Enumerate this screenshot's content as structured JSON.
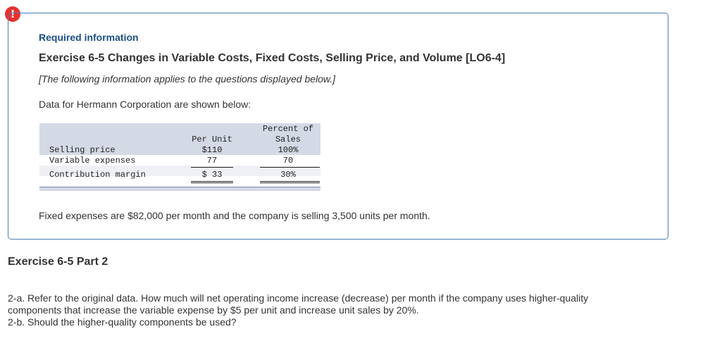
{
  "alert_glyph": "!",
  "info": {
    "required_label": "Required information",
    "exercise_title": "Exercise 6-5 Changes in Variable Costs, Fixed Costs, Selling Price, and Volume [LO6-4]",
    "note": "[The following information applies to the questions displayed below.]",
    "intro": "Data for Hermann Corporation are shown below:"
  },
  "table": {
    "header_percent_line1": "Percent of",
    "header_per_unit": "Per Unit",
    "header_percent_line2": "Sales",
    "rows": [
      {
        "label": "Selling price",
        "per_unit": "$110",
        "percent": "100%"
      },
      {
        "label": "Variable expenses",
        "per_unit": "77",
        "percent": "70"
      },
      {
        "label": "Contribution margin",
        "per_unit": "$ 33",
        "percent": "30%"
      }
    ]
  },
  "fixed_note": "Fixed expenses are $82,000 per month and the company is selling 3,500 units per month.",
  "part_title": "Exercise 6-5 Part 2",
  "questions": {
    "q2a_line1": "2-a. Refer to the original data. How much will net operating income increase (decrease) per month if the company uses higher-quality",
    "q2a_line2": "components that increase the variable expense by $5 per unit and increase unit sales by 20%.",
    "q2b": "2-b. Should the higher-quality components be used?"
  },
  "colors": {
    "alert": "#e8312f",
    "border": "#4a7fb0",
    "heading_blue": "#1c4f85",
    "table_header_bg": "#d4d9e6"
  }
}
